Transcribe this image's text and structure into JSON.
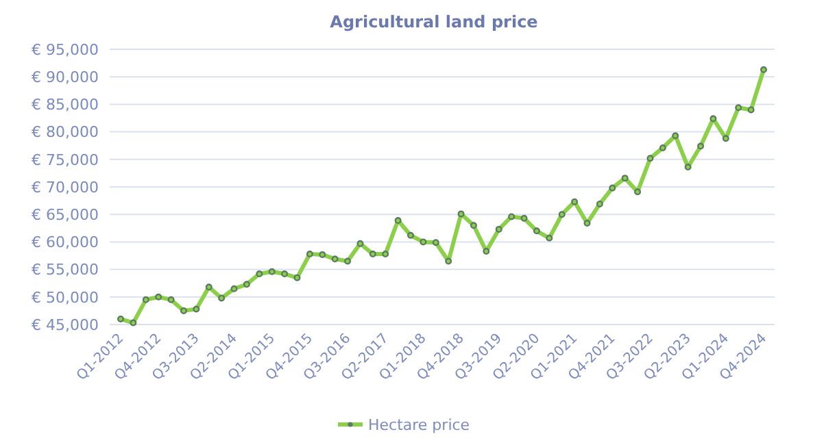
{
  "chart_data": {
    "type": "line",
    "title": "Agricultural land price",
    "categories": [
      "Q1-2012",
      null,
      null,
      "Q4-2012",
      null,
      null,
      "Q3-2013",
      null,
      null,
      "Q2-2014",
      null,
      null,
      "Q1-2015",
      null,
      null,
      "Q4-2015",
      null,
      null,
      "Q3-2016",
      null,
      null,
      "Q2-2017",
      null,
      null,
      "Q1-2018",
      null,
      null,
      "Q4-2018",
      null,
      null,
      "Q3-2019",
      null,
      null,
      "Q2-2020",
      null,
      null,
      "Q1-2021",
      null,
      null,
      "Q4-2021",
      null,
      null,
      "Q3-2022",
      null,
      null,
      "Q2-2023",
      null,
      null,
      "Q1-2024",
      null,
      null,
      "Q4-2024"
    ],
    "series": [
      {
        "name": "Hectare price",
        "color": "#8cd04a",
        "values": [
          46000,
          45300,
          49500,
          50000,
          49500,
          47500,
          47800,
          51800,
          49800,
          51500,
          52300,
          54200,
          54600,
          54200,
          53500,
          57800,
          57700,
          56900,
          56500,
          59700,
          57800,
          57800,
          63900,
          61200,
          60000,
          59900,
          56500,
          65100,
          63000,
          58300,
          62300,
          64600,
          64300,
          62000,
          60700,
          65000,
          67300,
          63400,
          66900,
          69800,
          71600,
          69100,
          75200,
          77100,
          79300,
          73600,
          77400,
          82400,
          78800,
          84400,
          84000,
          91300
        ]
      }
    ],
    "ylim": [
      45000,
      95000
    ],
    "yticks": [
      {
        "value": 45000,
        "label": "€ 45,000"
      },
      {
        "value": 50000,
        "label": "€ 50,000"
      },
      {
        "value": 55000,
        "label": "€ 55,000"
      },
      {
        "value": 60000,
        "label": "€ 60,000"
      },
      {
        "value": 65000,
        "label": "€ 65,000"
      },
      {
        "value": 70000,
        "label": "€ 70,000"
      },
      {
        "value": 75000,
        "label": "€ 75,000"
      },
      {
        "value": 80000,
        "label": "€ 80,000"
      },
      {
        "value": 85000,
        "label": "€ 85,000"
      },
      {
        "value": 90000,
        "label": "€ 90,000"
      },
      {
        "value": 95000,
        "label": "€ 95,000"
      }
    ],
    "grid": "y",
    "legend": "bottom",
    "marker": "circle",
    "line_style": "solid"
  }
}
